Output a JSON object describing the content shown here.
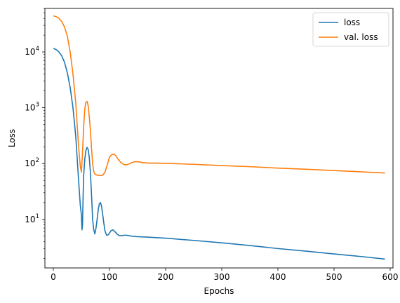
{
  "chart_data": {
    "type": "line",
    "title": "",
    "xlabel": "Epochs",
    "ylabel": "Loss",
    "xlim": [
      -15,
      605
    ],
    "ylim_log10": [
      0.13,
      4.78
    ],
    "y_scale": "log",
    "grid": false,
    "legend_position": "top-right",
    "x_ticks": [
      0,
      100,
      200,
      300,
      400,
      500,
      600
    ],
    "x_tick_labels": [
      "0",
      "100",
      "200",
      "300",
      "400",
      "500",
      "600"
    ],
    "y_major_ticks": [
      10,
      100,
      1000,
      10000
    ],
    "y_tick_labels": [
      {
        "base": "10",
        "exp": "1"
      },
      {
        "base": "10",
        "exp": "2"
      },
      {
        "base": "10",
        "exp": "3"
      },
      {
        "base": "10",
        "exp": "4"
      }
    ],
    "series": [
      {
        "name": "loss",
        "color": "#1f77b4",
        "x": [
          1,
          5,
          10,
          15,
          20,
          25,
          30,
          35,
          40,
          45,
          48,
          50,
          51,
          52,
          53,
          54,
          56,
          58,
          60,
          62,
          64,
          66,
          68,
          70,
          72,
          74,
          76,
          78,
          80,
          82,
          84,
          86,
          88,
          90,
          92,
          95,
          98,
          100,
          103,
          106,
          110,
          114,
          118,
          122,
          126,
          130,
          135,
          140,
          150,
          170,
          200,
          250,
          300,
          350,
          400,
          450,
          500,
          550,
          590
        ],
        "y": [
          11500,
          11000,
          10000,
          8500,
          6500,
          4200,
          2300,
          1000,
          300,
          50,
          18,
          12,
          6.5,
          8,
          25,
          60,
          120,
          170,
          195,
          180,
          130,
          70,
          28,
          10,
          6.5,
          5.5,
          7,
          10,
          15,
          19,
          20,
          17,
          12,
          8.5,
          6.2,
          5.2,
          5.3,
          5.7,
          6.3,
          6.5,
          6.0,
          5.4,
          5.1,
          5.1,
          5.2,
          5.2,
          5.1,
          5.0,
          4.9,
          4.8,
          4.6,
          4.2,
          3.8,
          3.4,
          3.0,
          2.7,
          2.4,
          2.15,
          1.95
        ]
      },
      {
        "name": "val. loss",
        "color": "#ff7f0e",
        "x": [
          1,
          5,
          10,
          15,
          20,
          25,
          30,
          35,
          40,
          45,
          48,
          50,
          52,
          54,
          56,
          58,
          60,
          62,
          64,
          66,
          68,
          70,
          72,
          74,
          76,
          78,
          80,
          84,
          88,
          92,
          96,
          100,
          104,
          108,
          112,
          116,
          120,
          124,
          128,
          132,
          136,
          140,
          145,
          150,
          155,
          160,
          170,
          180,
          200,
          250,
          300,
          350,
          400,
          450,
          500,
          550,
          590
        ],
        "y": [
          44000,
          43000,
          40000,
          35000,
          28000,
          19000,
          10000,
          4000,
          1200,
          200,
          90,
          70,
          160,
          450,
          950,
          1250,
          1300,
          1100,
          700,
          400,
          190,
          100,
          72,
          65,
          63,
          62,
          62,
          61,
          62,
          70,
          95,
          130,
          145,
          148,
          135,
          118,
          105,
          98,
          95,
          96,
          100,
          104,
          108,
          108,
          106,
          104,
          102,
          102,
          101,
          97,
          92,
          88,
          83,
          79,
          75,
          71,
          68
        ]
      }
    ]
  }
}
